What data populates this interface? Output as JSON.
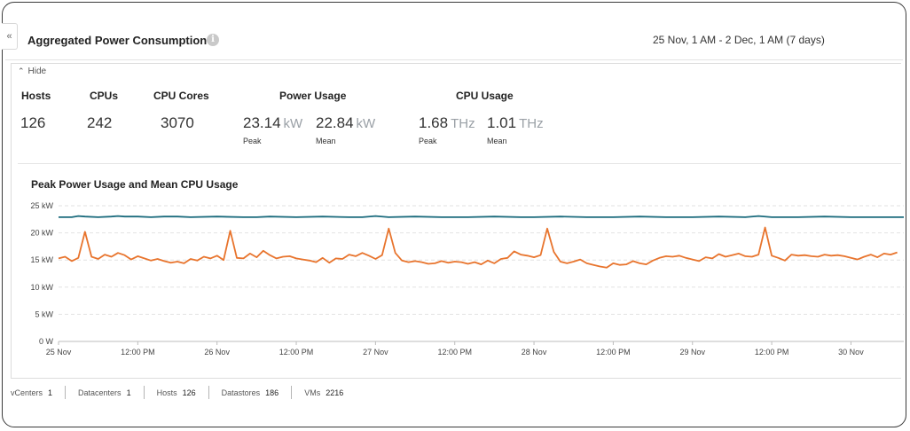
{
  "panel": {
    "collapse_label": "«",
    "title": "Aggregated Power Consumption",
    "info_icon": "i",
    "date_range": "25 Nov, 1 AM - 2 Dec, 1 AM (7 days)",
    "hide_label": "Hide"
  },
  "stats": {
    "hosts": {
      "label": "Hosts",
      "value": "126"
    },
    "cpus": {
      "label": "CPUs",
      "value": "242"
    },
    "cores": {
      "label": "CPU Cores",
      "value": "3070"
    },
    "power": {
      "label": "Power Usage",
      "peak": {
        "value": "23.14",
        "unit": "kW",
        "label": "Peak"
      },
      "mean": {
        "value": "22.84",
        "unit": "kW",
        "label": "Mean"
      }
    },
    "cpu": {
      "label": "CPU Usage",
      "peak": {
        "value": "1.68",
        "unit": "THz",
        "label": "Peak"
      },
      "mean": {
        "value": "1.01",
        "unit": "THz",
        "label": "Mean"
      }
    }
  },
  "footer": [
    {
      "label": "vCenters",
      "value": "1"
    },
    {
      "label": "Datacenters",
      "value": "1"
    },
    {
      "label": "Hosts",
      "value": "126"
    },
    {
      "label": "Datastores",
      "value": "186"
    },
    {
      "label": "VMs",
      "value": "2216"
    }
  ],
  "chart_data": {
    "type": "line",
    "title": "Peak Power Usage and Mean CPU Usage",
    "ylim": [
      0,
      25
    ],
    "yticks": [
      {
        "value": 25,
        "label": "25 kW"
      },
      {
        "value": 20,
        "label": "20 kW"
      },
      {
        "value": 15,
        "label": "15 kW"
      },
      {
        "value": 10,
        "label": "10 kW"
      },
      {
        "value": 5,
        "label": "5 kW"
      },
      {
        "value": 0,
        "label": "0 W"
      }
    ],
    "xlim": [
      0,
      128
    ],
    "xticks": [
      {
        "hour": 0,
        "label": "25 Nov"
      },
      {
        "hour": 12,
        "label": "12:00 PM"
      },
      {
        "hour": 24,
        "label": "26 Nov"
      },
      {
        "hour": 36,
        "label": "12:00 PM"
      },
      {
        "hour": 48,
        "label": "27 Nov"
      },
      {
        "hour": 60,
        "label": "12:00 PM"
      },
      {
        "hour": 72,
        "label": "28 Nov"
      },
      {
        "hour": 84,
        "label": "12:00 PM"
      },
      {
        "hour": 96,
        "label": "29 Nov"
      },
      {
        "hour": 108,
        "label": "12:00 PM"
      },
      {
        "hour": 120,
        "label": "30 Nov"
      }
    ],
    "grid": true,
    "series": [
      {
        "color": "#1b6b7d",
        "x": [
          0,
          2,
          3,
          4,
          6,
          8,
          9,
          10,
          12,
          14,
          16,
          18,
          20,
          24,
          28,
          30,
          32,
          36,
          40,
          44,
          46,
          48,
          50,
          54,
          58,
          62,
          66,
          70,
          72,
          76,
          80,
          84,
          88,
          92,
          96,
          100,
          104,
          106,
          108,
          112,
          116,
          120,
          124,
          128
        ],
        "values": [
          22.9,
          22.9,
          23.1,
          23.0,
          22.9,
          23.0,
          23.1,
          23.0,
          23.0,
          22.9,
          23.0,
          23.0,
          22.9,
          23.0,
          22.9,
          22.9,
          23.0,
          22.9,
          23.0,
          22.9,
          22.9,
          23.1,
          22.9,
          23.0,
          22.9,
          22.9,
          23.0,
          22.9,
          22.9,
          23.0,
          22.9,
          22.9,
          23.0,
          22.9,
          22.9,
          23.0,
          22.9,
          23.1,
          22.9,
          22.9,
          23.0,
          22.9,
          22.9,
          22.9
        ]
      },
      {
        "color": "#e8742d",
        "x": [
          0,
          1,
          2,
          3,
          4,
          5,
          6,
          7,
          8,
          9,
          10,
          11,
          12,
          13,
          14,
          15,
          16,
          17,
          18,
          19,
          20,
          21,
          22,
          23,
          24,
          25,
          26,
          27,
          28,
          29,
          30,
          31,
          32,
          33,
          34,
          35,
          36,
          37,
          38,
          39,
          40,
          41,
          42,
          43,
          44,
          45,
          46,
          47,
          48,
          49,
          50,
          51,
          52,
          53,
          54,
          55,
          56,
          57,
          58,
          59,
          60,
          61,
          62,
          63,
          64,
          65,
          66,
          67,
          68,
          69,
          70,
          71,
          72,
          73,
          74,
          75,
          76,
          77,
          78,
          79,
          80,
          81,
          82,
          83,
          84,
          85,
          86,
          87,
          88,
          89,
          90,
          91,
          92,
          93,
          94,
          95,
          96,
          97,
          98,
          99,
          100,
          101,
          102,
          103,
          104,
          105,
          106,
          107,
          108,
          109,
          110,
          111,
          112,
          113,
          114,
          115,
          116,
          117,
          118,
          119,
          120,
          121,
          122,
          123,
          124,
          125,
          126,
          127
        ],
        "values": [
          15.3,
          15.6,
          14.8,
          15.4,
          20.2,
          15.6,
          15.2,
          16.0,
          15.6,
          16.3,
          15.9,
          15.1,
          15.7,
          15.3,
          14.9,
          15.2,
          14.8,
          14.5,
          14.7,
          14.4,
          15.2,
          14.9,
          15.6,
          15.3,
          15.8,
          15.0,
          20.4,
          15.4,
          15.3,
          16.2,
          15.5,
          16.7,
          15.9,
          15.3,
          15.6,
          15.7,
          15.3,
          15.1,
          14.9,
          14.6,
          15.4,
          14.5,
          15.3,
          15.2,
          16.0,
          15.7,
          16.3,
          15.8,
          15.2,
          15.9,
          20.8,
          16.3,
          14.9,
          14.6,
          14.8,
          14.6,
          14.3,
          14.4,
          14.8,
          14.5,
          14.7,
          14.6,
          14.3,
          14.6,
          14.2,
          14.9,
          14.4,
          15.2,
          15.4,
          16.6,
          16.0,
          15.8,
          15.5,
          15.9,
          20.8,
          16.5,
          14.7,
          14.4,
          14.7,
          15.1,
          14.4,
          14.1,
          13.8,
          13.6,
          14.4,
          14.1,
          14.2,
          14.8,
          14.4,
          14.2,
          14.9,
          15.4,
          15.7,
          15.6,
          15.8,
          15.4,
          15.1,
          14.8,
          15.5,
          15.3,
          16.1,
          15.6,
          15.9,
          16.2,
          15.7,
          15.6,
          16.0,
          21.0,
          15.8,
          15.4,
          14.9,
          16.0,
          15.8,
          15.9,
          15.7,
          15.6,
          16.0,
          15.8,
          15.9,
          15.7,
          15.4,
          15.1,
          15.6,
          16.0,
          15.5,
          16.2,
          16.0,
          16.4
        ]
      }
    ]
  }
}
